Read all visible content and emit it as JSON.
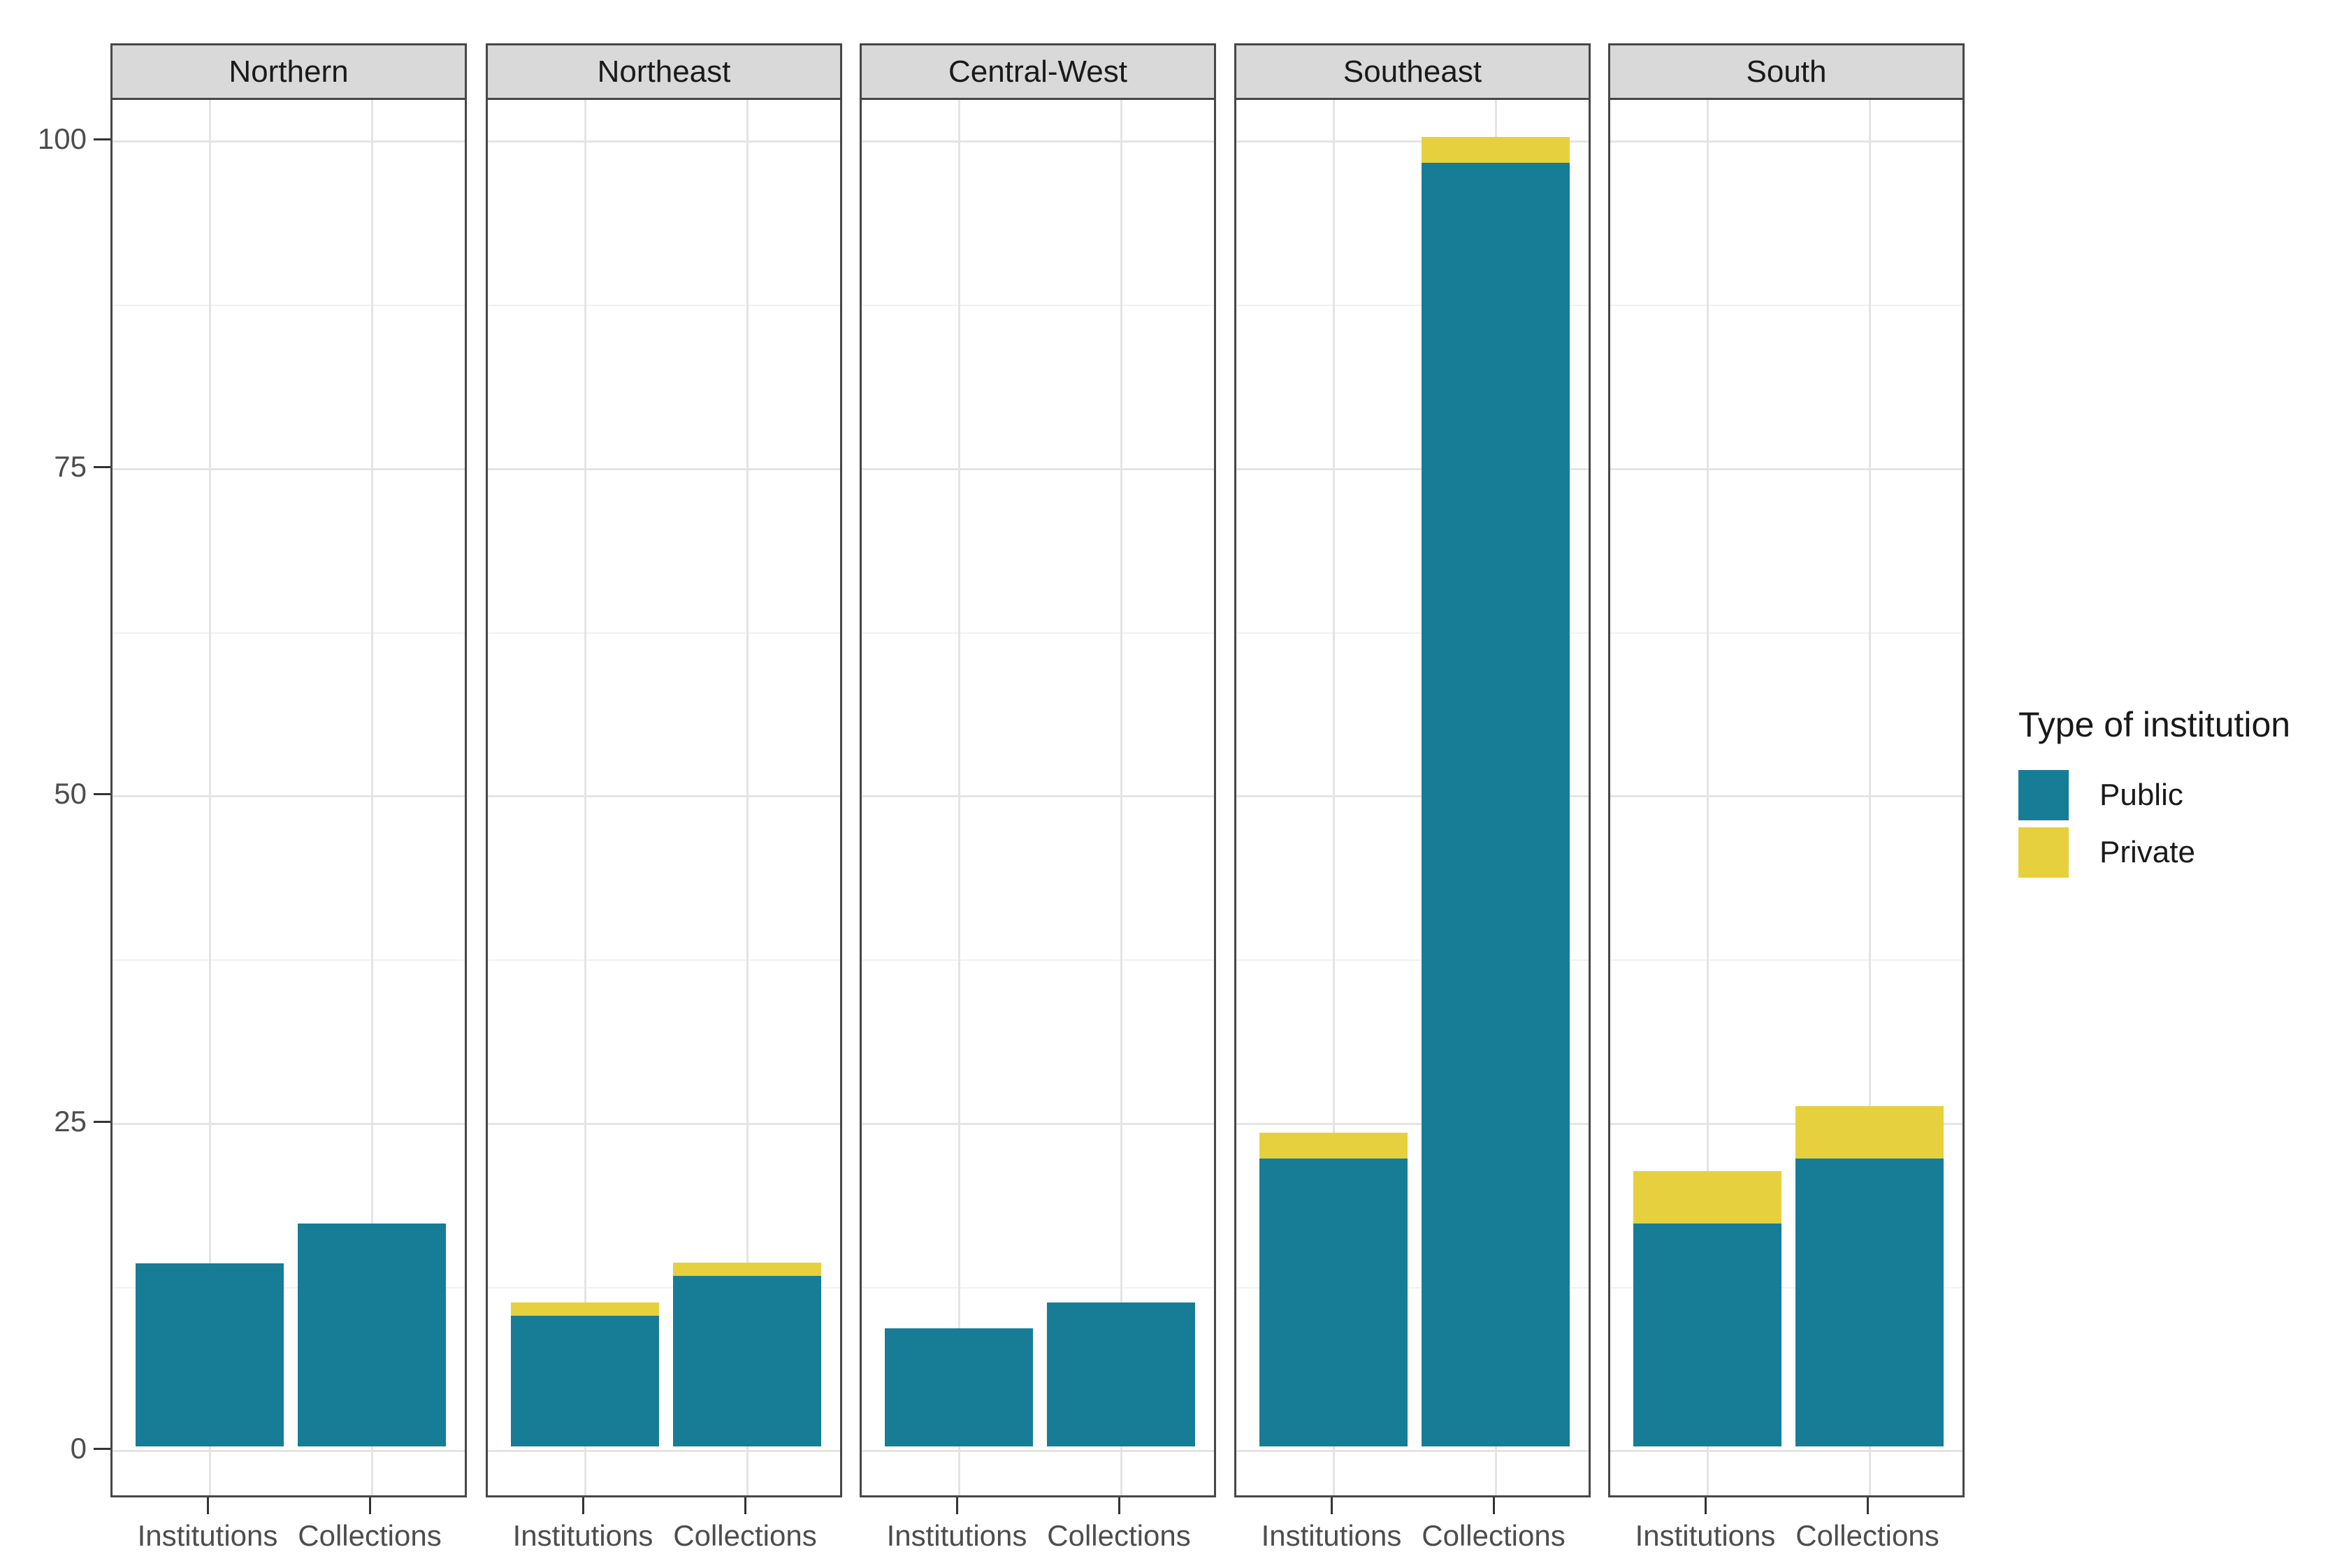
{
  "figure": {
    "background": "#FFFFFF"
  },
  "legend": {
    "title": "Type of institution",
    "items": [
      {
        "label": "Public",
        "color": "#177D96"
      },
      {
        "label": "Private",
        "color": "#E6D03D"
      }
    ]
  },
  "colors": {
    "public_teal": "#177D96",
    "private_yellow": "#E6D03D",
    "grid_major": "#E4E4E4",
    "grid_minor": "#F1F1F1",
    "panel_border": "#474747",
    "strip_fill": "#D9D9D9",
    "strip_text": "#1A1A1A",
    "axis_text": "#4D4D4D",
    "tick_mark": "#333333"
  },
  "chart_data": {
    "type": "bar",
    "stacked": true,
    "faceted": true,
    "title": "",
    "xlabel": "",
    "ylabel": "",
    "facet_titles": [
      "Northern",
      "Northeast",
      "Central-West",
      "Southeast",
      "South"
    ],
    "categories": [
      "Institutions",
      "Collections"
    ],
    "series_names": [
      "Public",
      "Private"
    ],
    "ylim": [
      0,
      100
    ],
    "y_ticks": [
      0,
      25,
      50,
      75,
      100
    ],
    "y_minor_gridlines": [
      12.5,
      37.5,
      62.5,
      87.5
    ],
    "legend_position": "right",
    "grid": "horizontal major+minor, vertical major at category centers",
    "facets": [
      {
        "title": "Northern",
        "bars": [
          {
            "category": "Institutions",
            "Public": 14,
            "Private": 0
          },
          {
            "category": "Collections",
            "Public": 17,
            "Private": 0
          }
        ]
      },
      {
        "title": "Northeast",
        "bars": [
          {
            "category": "Institutions",
            "Public": 10,
            "Private": 1
          },
          {
            "category": "Collections",
            "Public": 13,
            "Private": 1
          }
        ]
      },
      {
        "title": "Central-West",
        "bars": [
          {
            "category": "Institutions",
            "Public": 9,
            "Private": 0
          },
          {
            "category": "Collections",
            "Public": 11,
            "Private": 0
          }
        ]
      },
      {
        "title": "Southeast",
        "bars": [
          {
            "category": "Institutions",
            "Public": 22,
            "Private": 2
          },
          {
            "category": "Collections",
            "Public": 98,
            "Private": 2
          }
        ]
      },
      {
        "title": "South",
        "bars": [
          {
            "category": "Institutions",
            "Public": 17,
            "Private": 4
          },
          {
            "category": "Collections",
            "Public": 22,
            "Private": 4
          }
        ]
      }
    ]
  }
}
